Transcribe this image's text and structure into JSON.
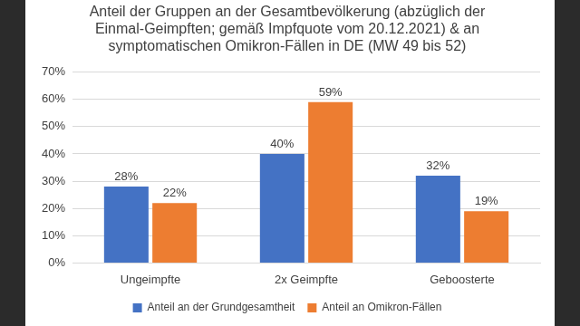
{
  "chart_data": {
    "type": "bar",
    "title": [
      "Anteil der Gruppen an der Gesamtbevölkerung (abzüglich der",
      "Einmal-Geimpften; gemäß Impfquote vom 20.12.2021) & an",
      "symptomatischen Omikron-Fällen in DE (MW 49 bis 52)"
    ],
    "categories": [
      "Ungeimpfte",
      "2x Geimpfte",
      "Geboosterte"
    ],
    "series": [
      {
        "name": "Anteil an der Grundgesamtheit",
        "color": "#4472c4",
        "values": [
          28,
          40,
          32
        ],
        "value_labels": [
          "28%",
          "40%",
          "32%"
        ]
      },
      {
        "name": "Anteil an Omikron-Fällen",
        "color": "#ed7d31",
        "values": [
          22,
          59,
          19
        ],
        "value_labels": [
          "22%",
          "59%",
          "19%"
        ]
      }
    ],
    "ylim": [
      0,
      70
    ],
    "yticks": [
      {
        "value": 0,
        "label": "0%"
      },
      {
        "value": 10,
        "label": "10%"
      },
      {
        "value": 20,
        "label": "20%"
      },
      {
        "value": 30,
        "label": "30%"
      },
      {
        "value": 40,
        "label": "40%"
      },
      {
        "value": 50,
        "label": "50%"
      },
      {
        "value": 60,
        "label": "60%"
      },
      {
        "value": 70,
        "label": "70%"
      }
    ],
    "grid": true,
    "legend": "bottom",
    "data_labels": true
  }
}
